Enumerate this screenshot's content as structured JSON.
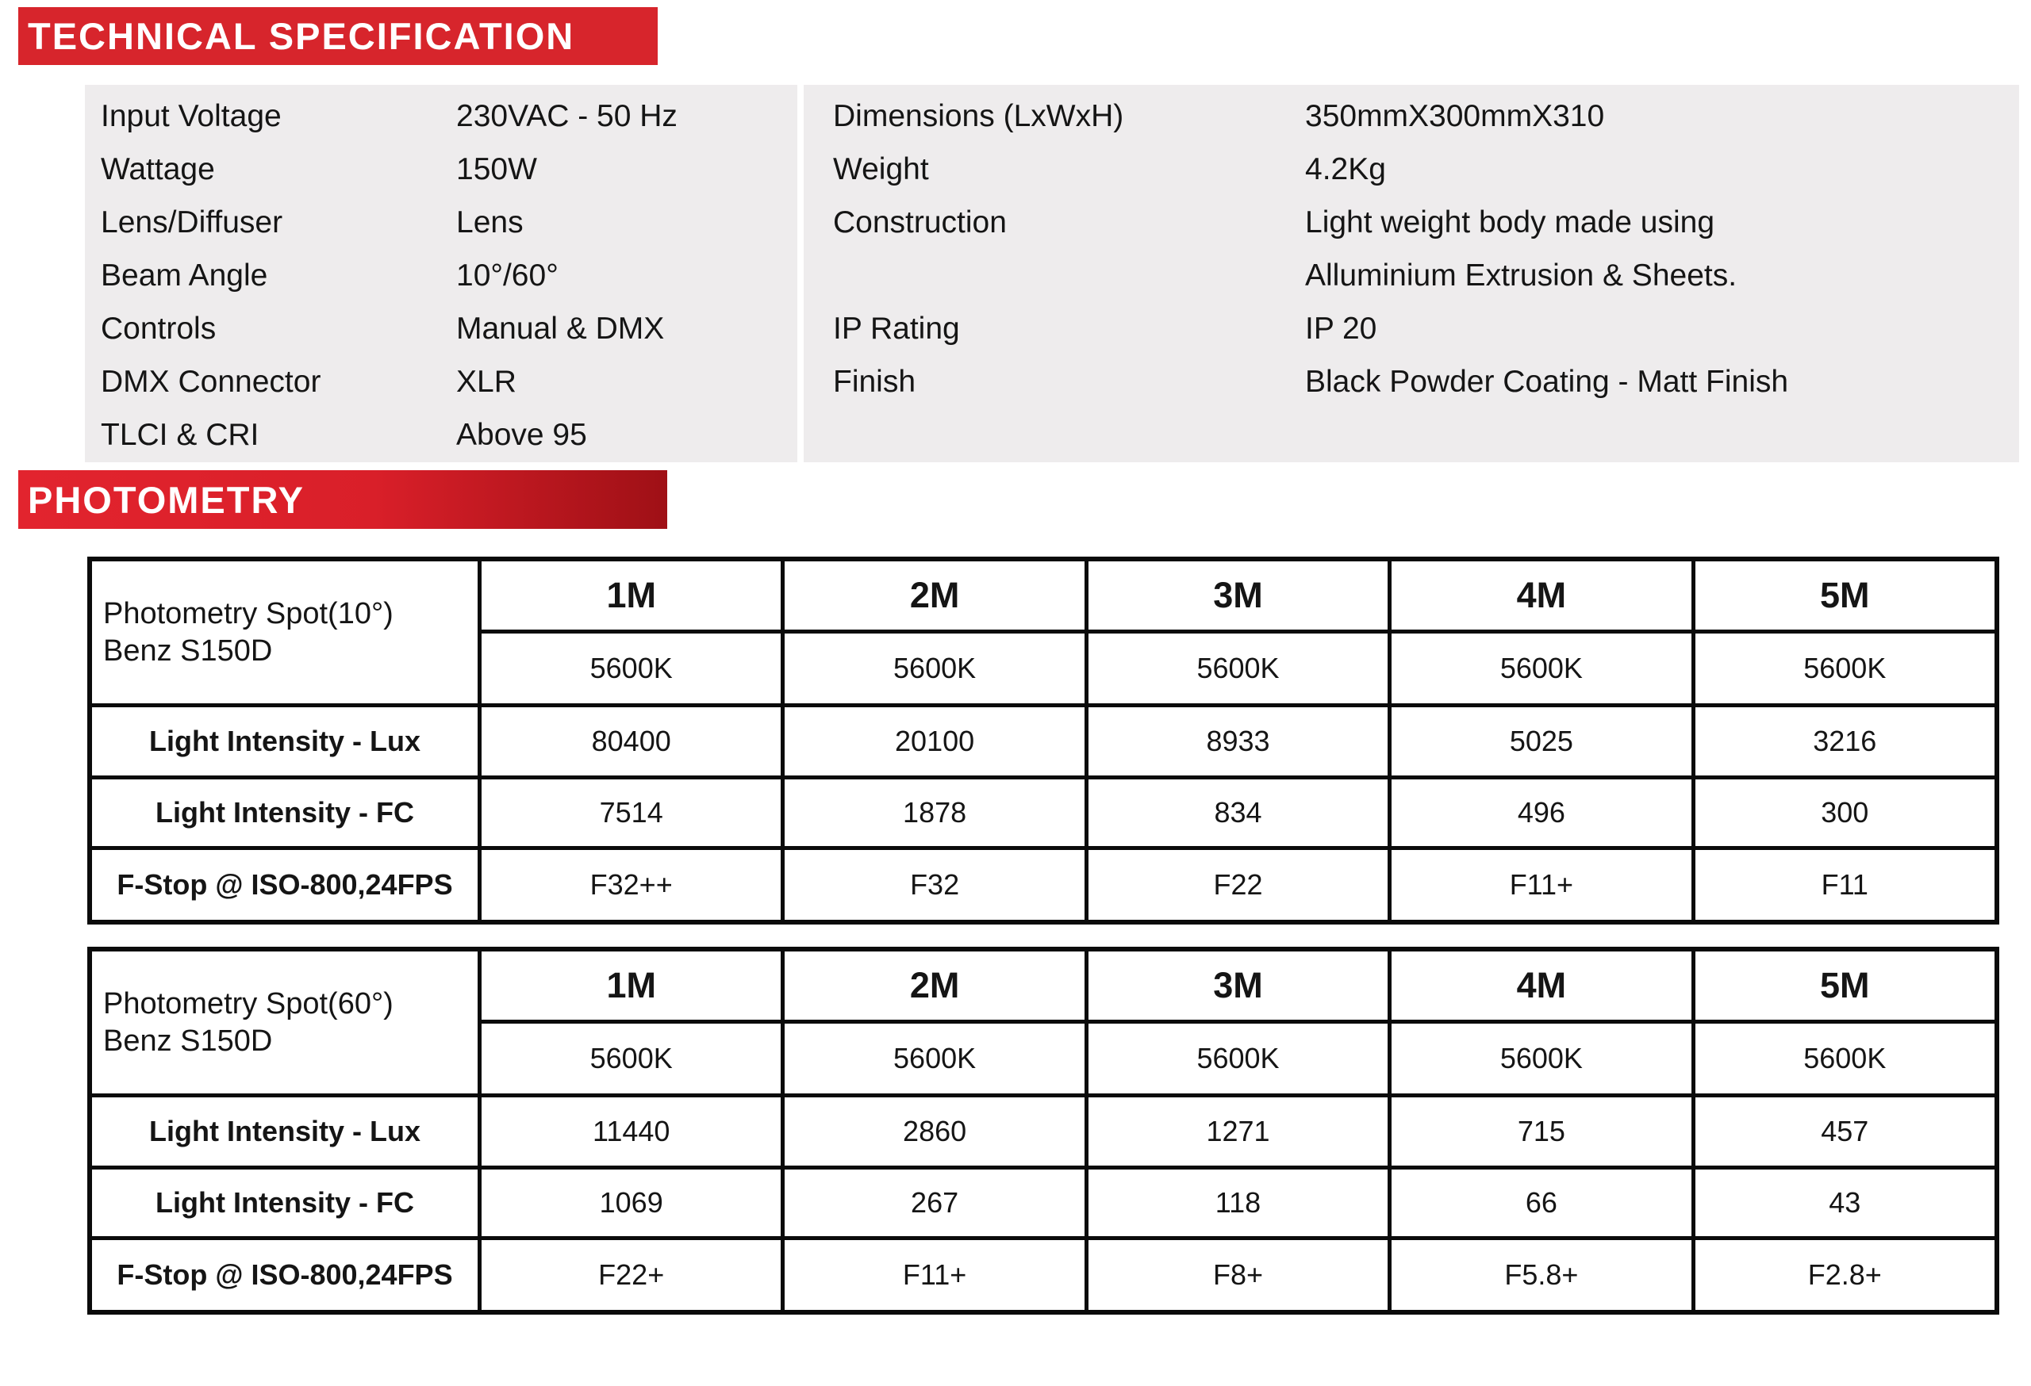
{
  "colors": {
    "banner_red": "#d7252c",
    "photometry_gradient_start": "#e2242e",
    "photometry_gradient_end": "#9f1016",
    "panel_gray": "#eeeced",
    "table_border": "#0b0b0b",
    "text": "#151515",
    "banner_text": "#ffffff"
  },
  "banners": {
    "technical": "TECHNICAL SPECIFICATION",
    "photometry": "PHOTOMETRY"
  },
  "specs": {
    "left": [
      {
        "label": "Input Voltage",
        "value": "230VAC - 50 Hz"
      },
      {
        "label": "Wattage",
        "value": "150W"
      },
      {
        "label": "Lens/Diffuser",
        "value": "Lens"
      },
      {
        "label": "Beam Angle",
        "value": "10°/60°"
      },
      {
        "label": "Controls",
        "value": "Manual & DMX"
      },
      {
        "label": "DMX Connector",
        "value": "XLR"
      },
      {
        "label": "TLCI & CRI",
        "value": "Above 95"
      }
    ],
    "right": [
      {
        "label": "Dimensions (LxWxH)",
        "value": "350mmX300mmX310"
      },
      {
        "label": "Weight",
        "value": "4.2Kg"
      },
      {
        "label": "Construction",
        "value": "Light weight body made using"
      },
      {
        "label": "",
        "value": "Alluminium Extrusion & Sheets."
      },
      {
        "label": "IP Rating",
        "value": "IP 20"
      },
      {
        "label": "Finish",
        "value": "Black Powder Coating - Matt Finish"
      }
    ]
  },
  "photometry_tables": [
    {
      "title_line1": "Photometry Spot(10°)",
      "title_line2": "Benz S150D",
      "columns": [
        "1M",
        "2M",
        "3M",
        "4M",
        "5M"
      ],
      "cct": [
        "5600K",
        "5600K",
        "5600K",
        "5600K",
        "5600K"
      ],
      "rows": [
        {
          "label": "Light Intensity - Lux",
          "values": [
            "80400",
            "20100",
            "8933",
            "5025",
            "3216"
          ]
        },
        {
          "label": "Light Intensity - FC",
          "values": [
            "7514",
            "1878",
            "834",
            "496",
            "300"
          ]
        },
        {
          "label": "F-Stop @ ISO-800,24FPS",
          "values": [
            "F32++",
            "F32",
            "F22",
            "F11+",
            "F11"
          ]
        }
      ]
    },
    {
      "title_line1": "Photometry Spot(60°)",
      "title_line2": "Benz S150D",
      "columns": [
        "1M",
        "2M",
        "3M",
        "4M",
        "5M"
      ],
      "cct": [
        "5600K",
        "5600K",
        "5600K",
        "5600K",
        "5600K"
      ],
      "rows": [
        {
          "label": "Light Intensity - Lux",
          "values": [
            "11440",
            "2860",
            "1271",
            "715",
            "457"
          ]
        },
        {
          "label": "Light Intensity - FC",
          "values": [
            "1069",
            "267",
            "118",
            "66",
            "43"
          ]
        },
        {
          "label": "F-Stop @ ISO-800,24FPS",
          "values": [
            "F22+",
            "F11+",
            "F8+",
            "F5.8+",
            "F2.8+"
          ]
        }
      ]
    }
  ]
}
